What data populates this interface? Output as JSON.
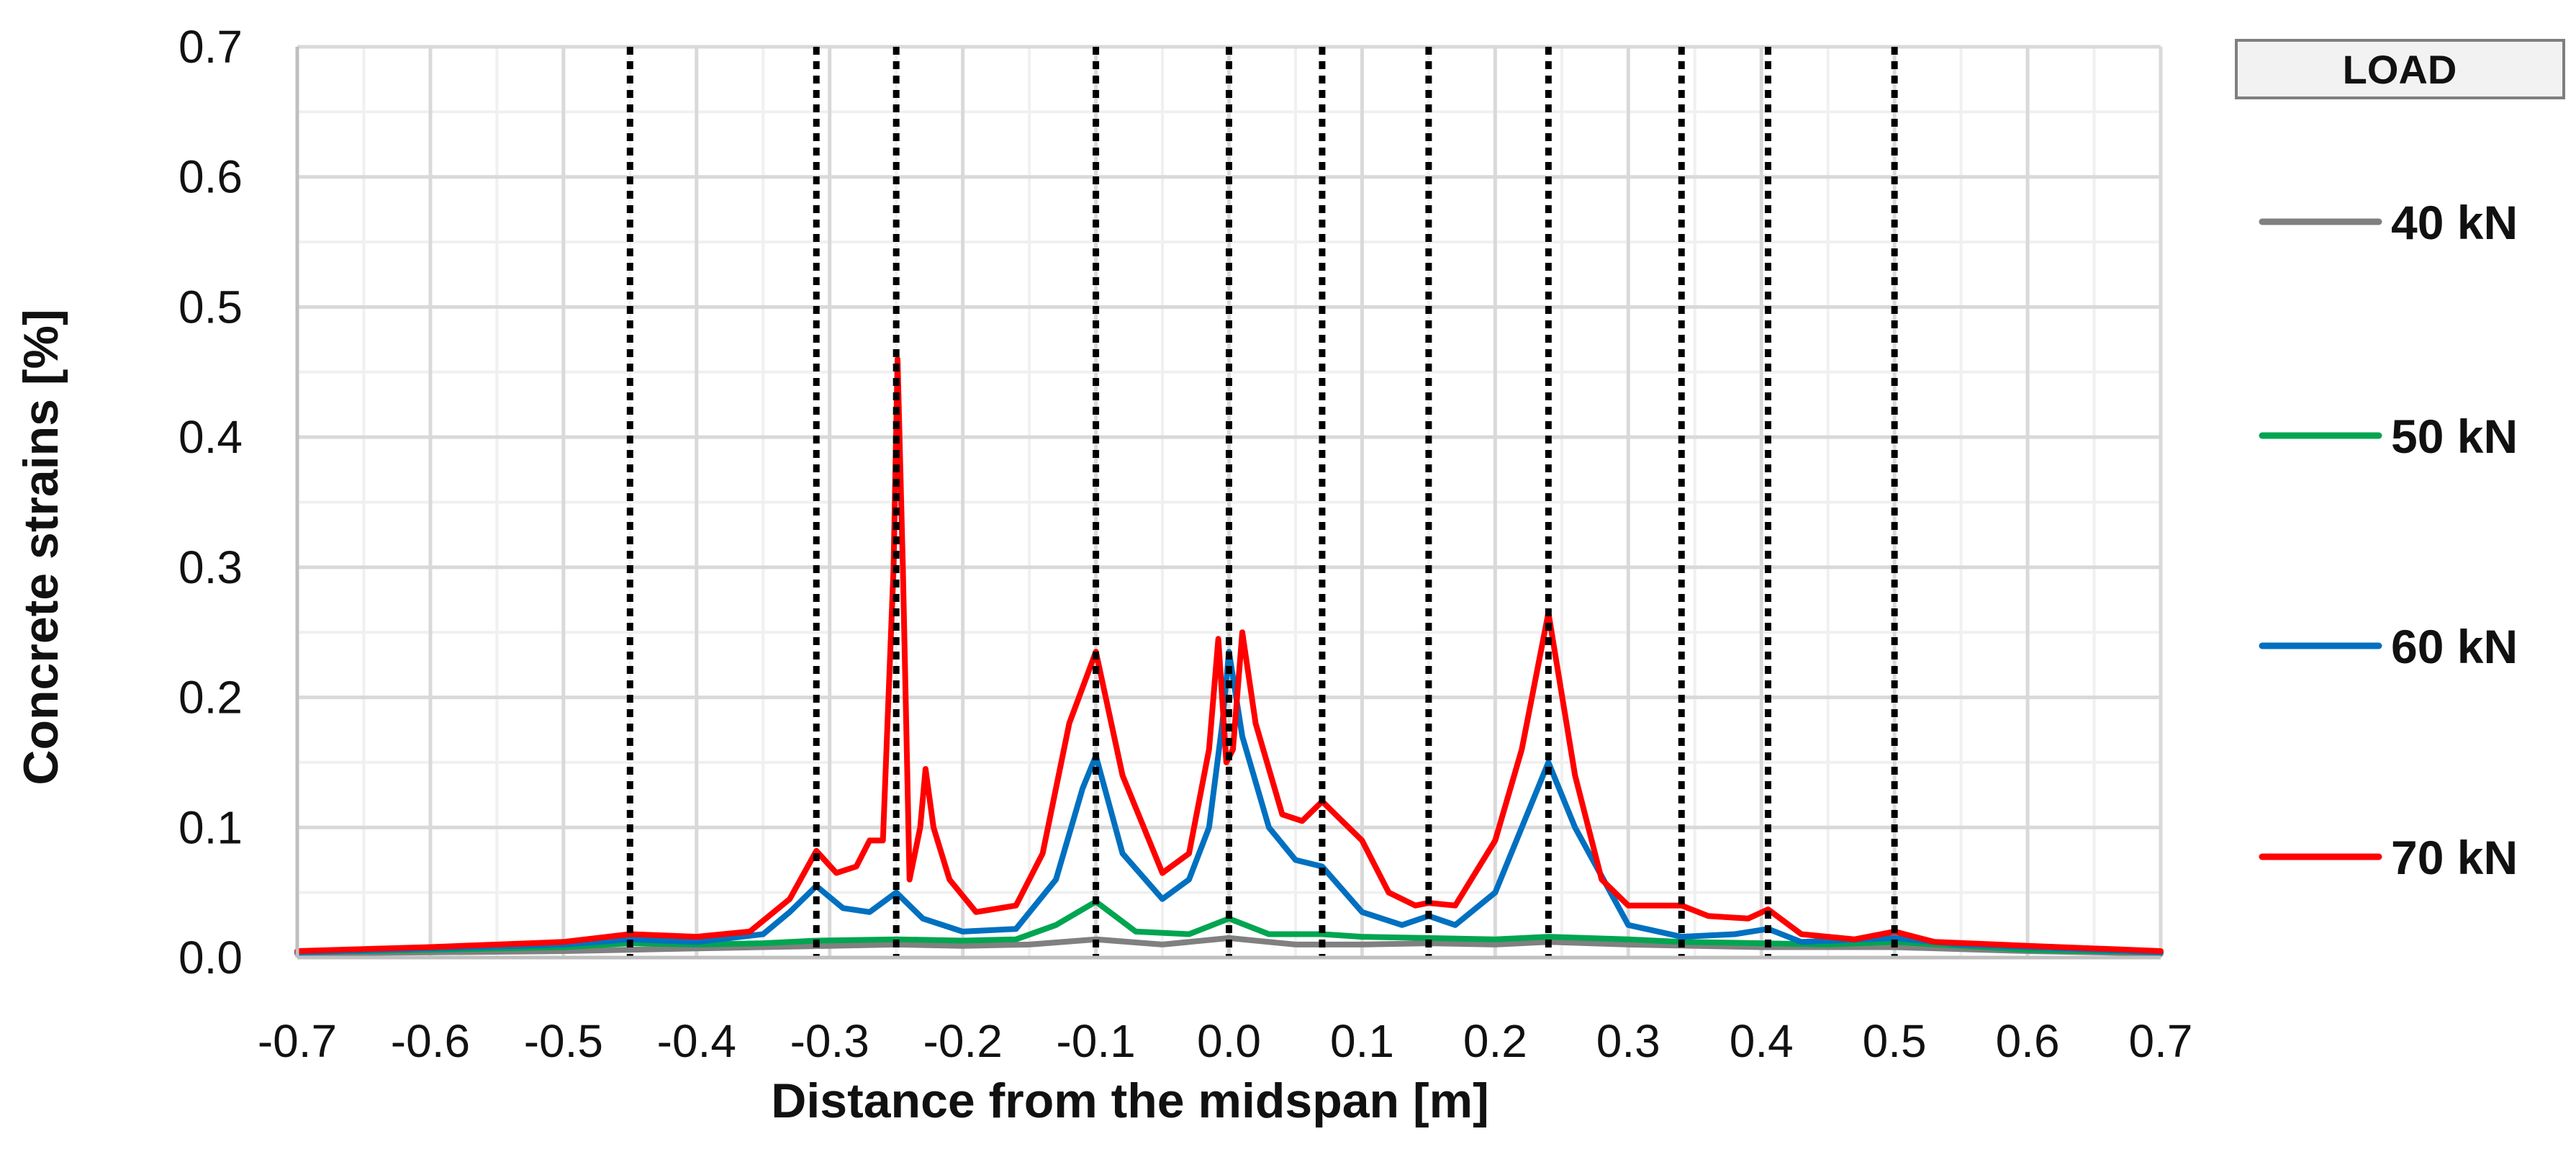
{
  "chart_data": {
    "type": "line",
    "title": "",
    "xlabel": "Distance from the midspan [m]",
    "ylabel": "Concrete strains [%]",
    "xlim": [
      -0.7,
      0.7
    ],
    "ylim": [
      0,
      0.7
    ],
    "x_ticks": [
      -0.7,
      -0.6,
      -0.5,
      -0.4,
      -0.3,
      -0.2,
      -0.1,
      0.0,
      0.1,
      0.2,
      0.3,
      0.4,
      0.5,
      0.6,
      0.7
    ],
    "x_tick_labels": [
      "-0.7",
      "-0.6",
      "-0.5",
      "-0.4",
      "-0.3",
      "-0.2",
      "-0.1",
      "0.0",
      "0.1",
      "0.2",
      "0.3",
      "0.4",
      "0.5",
      "0.6",
      "0.7"
    ],
    "y_ticks": [
      0,
      0.1,
      0.2,
      0.3,
      0.4,
      0.5,
      0.6,
      0.7
    ],
    "y_tick_labels": [
      "0.0",
      "0.1",
      "0.2",
      "0.3",
      "0.4",
      "0.5",
      "0.6",
      "0.7"
    ],
    "grid": true,
    "legend_position": "right",
    "legend_title": "LOAD",
    "crack_lines_x": [
      -0.45,
      -0.31,
      -0.25,
      -0.1,
      0.0,
      0.07,
      0.15,
      0.24,
      0.34,
      0.405,
      0.5
    ],
    "series": [
      {
        "name": "40 kN",
        "color": "#808080",
        "points": [
          [
            -0.7,
            0.003
          ],
          [
            -0.6,
            0.004
          ],
          [
            -0.5,
            0.005
          ],
          [
            -0.4,
            0.007
          ],
          [
            -0.3,
            0.009
          ],
          [
            -0.25,
            0.01
          ],
          [
            -0.2,
            0.009
          ],
          [
            -0.15,
            0.01
          ],
          [
            -0.1,
            0.014
          ],
          [
            -0.05,
            0.01
          ],
          [
            0.0,
            0.015
          ],
          [
            0.05,
            0.01
          ],
          [
            0.1,
            0.01
          ],
          [
            0.15,
            0.011
          ],
          [
            0.2,
            0.01
          ],
          [
            0.24,
            0.012
          ],
          [
            0.3,
            0.01
          ],
          [
            0.4,
            0.008
          ],
          [
            0.5,
            0.008
          ],
          [
            0.6,
            0.005
          ],
          [
            0.7,
            0.003
          ]
        ]
      },
      {
        "name": "50 kN",
        "color": "#00A550",
        "points": [
          [
            -0.7,
            0.004
          ],
          [
            -0.6,
            0.006
          ],
          [
            -0.5,
            0.008
          ],
          [
            -0.45,
            0.011
          ],
          [
            -0.4,
            0.01
          ],
          [
            -0.35,
            0.011
          ],
          [
            -0.31,
            0.013
          ],
          [
            -0.25,
            0.014
          ],
          [
            -0.2,
            0.013
          ],
          [
            -0.16,
            0.014
          ],
          [
            -0.13,
            0.025
          ],
          [
            -0.1,
            0.043
          ],
          [
            -0.07,
            0.02
          ],
          [
            -0.03,
            0.018
          ],
          [
            0.0,
            0.03
          ],
          [
            0.03,
            0.018
          ],
          [
            0.07,
            0.018
          ],
          [
            0.1,
            0.016
          ],
          [
            0.15,
            0.015
          ],
          [
            0.2,
            0.014
          ],
          [
            0.24,
            0.016
          ],
          [
            0.3,
            0.014
          ],
          [
            0.34,
            0.012
          ],
          [
            0.4,
            0.011
          ],
          [
            0.45,
            0.01
          ],
          [
            0.5,
            0.012
          ],
          [
            0.6,
            0.006
          ],
          [
            0.7,
            0.004
          ]
        ]
      },
      {
        "name": "60 kN",
        "color": "#0070C0",
        "points": [
          [
            -0.7,
            0.004
          ],
          [
            -0.6,
            0.007
          ],
          [
            -0.5,
            0.01
          ],
          [
            -0.45,
            0.014
          ],
          [
            -0.4,
            0.012
          ],
          [
            -0.35,
            0.018
          ],
          [
            -0.33,
            0.035
          ],
          [
            -0.31,
            0.055
          ],
          [
            -0.29,
            0.038
          ],
          [
            -0.27,
            0.035
          ],
          [
            -0.25,
            0.05
          ],
          [
            -0.23,
            0.03
          ],
          [
            -0.2,
            0.02
          ],
          [
            -0.16,
            0.022
          ],
          [
            -0.13,
            0.06
          ],
          [
            -0.11,
            0.13
          ],
          [
            -0.1,
            0.155
          ],
          [
            -0.08,
            0.08
          ],
          [
            -0.05,
            0.045
          ],
          [
            -0.03,
            0.06
          ],
          [
            -0.015,
            0.1
          ],
          [
            -0.005,
            0.18
          ],
          [
            0.0,
            0.235
          ],
          [
            0.01,
            0.17
          ],
          [
            0.03,
            0.1
          ],
          [
            0.05,
            0.075
          ],
          [
            0.07,
            0.07
          ],
          [
            0.1,
            0.035
          ],
          [
            0.13,
            0.025
          ],
          [
            0.15,
            0.032
          ],
          [
            0.17,
            0.025
          ],
          [
            0.2,
            0.05
          ],
          [
            0.22,
            0.1
          ],
          [
            0.24,
            0.15
          ],
          [
            0.26,
            0.1
          ],
          [
            0.3,
            0.025
          ],
          [
            0.34,
            0.016
          ],
          [
            0.38,
            0.018
          ],
          [
            0.405,
            0.022
          ],
          [
            0.43,
            0.012
          ],
          [
            0.5,
            0.015
          ],
          [
            0.55,
            0.01
          ],
          [
            0.6,
            0.008
          ],
          [
            0.7,
            0.004
          ]
        ]
      },
      {
        "name": "70 kN",
        "color": "#FF0000",
        "points": [
          [
            -0.7,
            0.005
          ],
          [
            -0.6,
            0.008
          ],
          [
            -0.5,
            0.012
          ],
          [
            -0.45,
            0.018
          ],
          [
            -0.4,
            0.016
          ],
          [
            -0.36,
            0.02
          ],
          [
            -0.33,
            0.045
          ],
          [
            -0.31,
            0.082
          ],
          [
            -0.295,
            0.065
          ],
          [
            -0.28,
            0.07
          ],
          [
            -0.27,
            0.09
          ],
          [
            -0.26,
            0.09
          ],
          [
            -0.252,
            0.3
          ],
          [
            -0.249,
            0.46
          ],
          [
            -0.245,
            0.3
          ],
          [
            -0.24,
            0.06
          ],
          [
            -0.232,
            0.1
          ],
          [
            -0.228,
            0.145
          ],
          [
            -0.222,
            0.1
          ],
          [
            -0.21,
            0.06
          ],
          [
            -0.19,
            0.035
          ],
          [
            -0.16,
            0.04
          ],
          [
            -0.14,
            0.08
          ],
          [
            -0.12,
            0.18
          ],
          [
            -0.1,
            0.235
          ],
          [
            -0.08,
            0.14
          ],
          [
            -0.05,
            0.065
          ],
          [
            -0.03,
            0.08
          ],
          [
            -0.015,
            0.16
          ],
          [
            -0.008,
            0.245
          ],
          [
            -0.002,
            0.15
          ],
          [
            0.003,
            0.16
          ],
          [
            0.01,
            0.25
          ],
          [
            0.02,
            0.18
          ],
          [
            0.04,
            0.11
          ],
          [
            0.055,
            0.105
          ],
          [
            0.07,
            0.12
          ],
          [
            0.085,
            0.105
          ],
          [
            0.1,
            0.09
          ],
          [
            0.12,
            0.05
          ],
          [
            0.14,
            0.04
          ],
          [
            0.15,
            0.042
          ],
          [
            0.17,
            0.04
          ],
          [
            0.2,
            0.09
          ],
          [
            0.22,
            0.16
          ],
          [
            0.24,
            0.265
          ],
          [
            0.26,
            0.14
          ],
          [
            0.28,
            0.06
          ],
          [
            0.3,
            0.04
          ],
          [
            0.34,
            0.04
          ],
          [
            0.36,
            0.032
          ],
          [
            0.39,
            0.03
          ],
          [
            0.405,
            0.037
          ],
          [
            0.43,
            0.018
          ],
          [
            0.47,
            0.014
          ],
          [
            0.5,
            0.02
          ],
          [
            0.53,
            0.012
          ],
          [
            0.6,
            0.009
          ],
          [
            0.7,
            0.005
          ]
        ]
      }
    ]
  }
}
